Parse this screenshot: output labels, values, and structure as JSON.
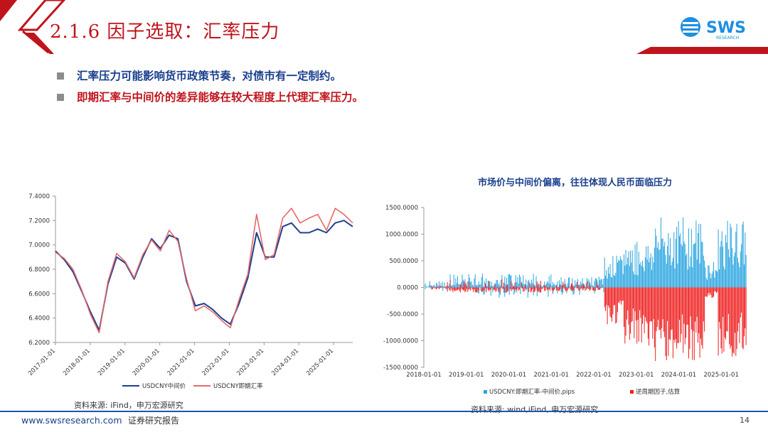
{
  "header": {
    "title": "2.1.6 因子选取：汇率压力",
    "logo_text": "SWS",
    "logo_sub": "RESEARCH",
    "colors": {
      "accent_red": "#c0141c",
      "brand_blue": "#1a56b0",
      "logo_blue": "#1c8fe0"
    }
  },
  "bullets": [
    {
      "text": "汇率压力可能影响货币政策节奏，对债市有一定制约。",
      "color": "#1a3f8c"
    },
    {
      "text": "即期汇率与中间价的差异能够在较大程度上代理汇率压力。",
      "color": "#c0141c"
    }
  ],
  "left_chart": {
    "source": "资料来源: iFind，申万宏源研究"
  },
  "right_chart": {
    "source": "资料来源: wind,iFind, 申万宏源研究"
  },
  "footer": {
    "url": "www.swsresearch.com",
    "report": "证券研究报告",
    "page": "14"
  },
  "chart_data": [
    {
      "type": "line",
      "title": "",
      "xlabel": "",
      "ylabel": "",
      "ylim": [
        6.2,
        7.4
      ],
      "yticks": [
        "7.4000",
        "7.2000",
        "7.0000",
        "6.8000",
        "6.6000",
        "6.4000",
        "6.2000"
      ],
      "x_ticks": [
        "2017-01-01",
        "2018-01-01",
        "2019-01-01",
        "2020-01-01",
        "2021-01-01",
        "2022-01-01",
        "2023-01-01",
        "2024-01-01",
        "2025-01-01"
      ],
      "x": [
        "2017-01",
        "2017-04",
        "2017-07",
        "2017-10",
        "2018-01",
        "2018-04",
        "2018-07",
        "2018-10",
        "2019-01",
        "2019-04",
        "2019-07",
        "2019-10",
        "2020-01",
        "2020-04",
        "2020-07",
        "2020-10",
        "2021-01",
        "2021-04",
        "2021-07",
        "2021-10",
        "2022-01",
        "2022-04",
        "2022-07",
        "2022-10",
        "2023-01",
        "2023-04",
        "2023-07",
        "2023-10",
        "2024-01",
        "2024-04",
        "2024-07",
        "2024-10",
        "2025-01",
        "2025-04",
        "2025-07"
      ],
      "legend_position": "bottom",
      "series": [
        {
          "name": "USDCNY中间价",
          "color": "#1f3f8f",
          "values": [
            6.95,
            6.88,
            6.78,
            6.62,
            6.45,
            6.3,
            6.68,
            6.9,
            6.85,
            6.72,
            6.9,
            7.05,
            6.97,
            7.08,
            7.05,
            6.7,
            6.5,
            6.52,
            6.47,
            6.4,
            6.35,
            6.52,
            6.73,
            7.1,
            6.9,
            6.9,
            7.15,
            7.18,
            7.1,
            7.1,
            7.13,
            7.1,
            7.18,
            7.2,
            7.15
          ]
        },
        {
          "name": "USDCNY即期汇率",
          "color": "#e46a6a",
          "values": [
            6.94,
            6.89,
            6.8,
            6.63,
            6.43,
            6.28,
            6.7,
            6.93,
            6.86,
            6.73,
            6.92,
            7.04,
            6.95,
            7.12,
            7.03,
            6.72,
            6.46,
            6.5,
            6.45,
            6.38,
            6.32,
            6.55,
            6.76,
            7.25,
            6.88,
            6.92,
            7.22,
            7.3,
            7.18,
            7.22,
            7.25,
            7.12,
            7.3,
            7.25,
            7.18
          ]
        }
      ]
    },
    {
      "type": "bar",
      "title": "市场价与中间价偏离，往往体现人民币面临压力",
      "xlabel": "",
      "ylabel": "",
      "ylim": [
        -1500,
        1500
      ],
      "yticks": [
        "1500.0000",
        "1000.0000",
        "500.0000",
        "0.0000",
        "-500.0000",
        "-1000.0000",
        "-1500.0000"
      ],
      "x_ticks": [
        "2018-01-01",
        "2019-01-01",
        "2020-01-01",
        "2021-01-01",
        "2022-01-01",
        "2023-01-01",
        "2024-01-01",
        "2025-01-01"
      ],
      "legend_position": "bottom",
      "series": [
        {
          "name": "USDCNY:即期汇率-中间价,pips",
          "color": "#2aa5e0"
        },
        {
          "name": "逆周期因子,估算",
          "color": "#ee1c1c"
        }
      ]
    }
  ]
}
